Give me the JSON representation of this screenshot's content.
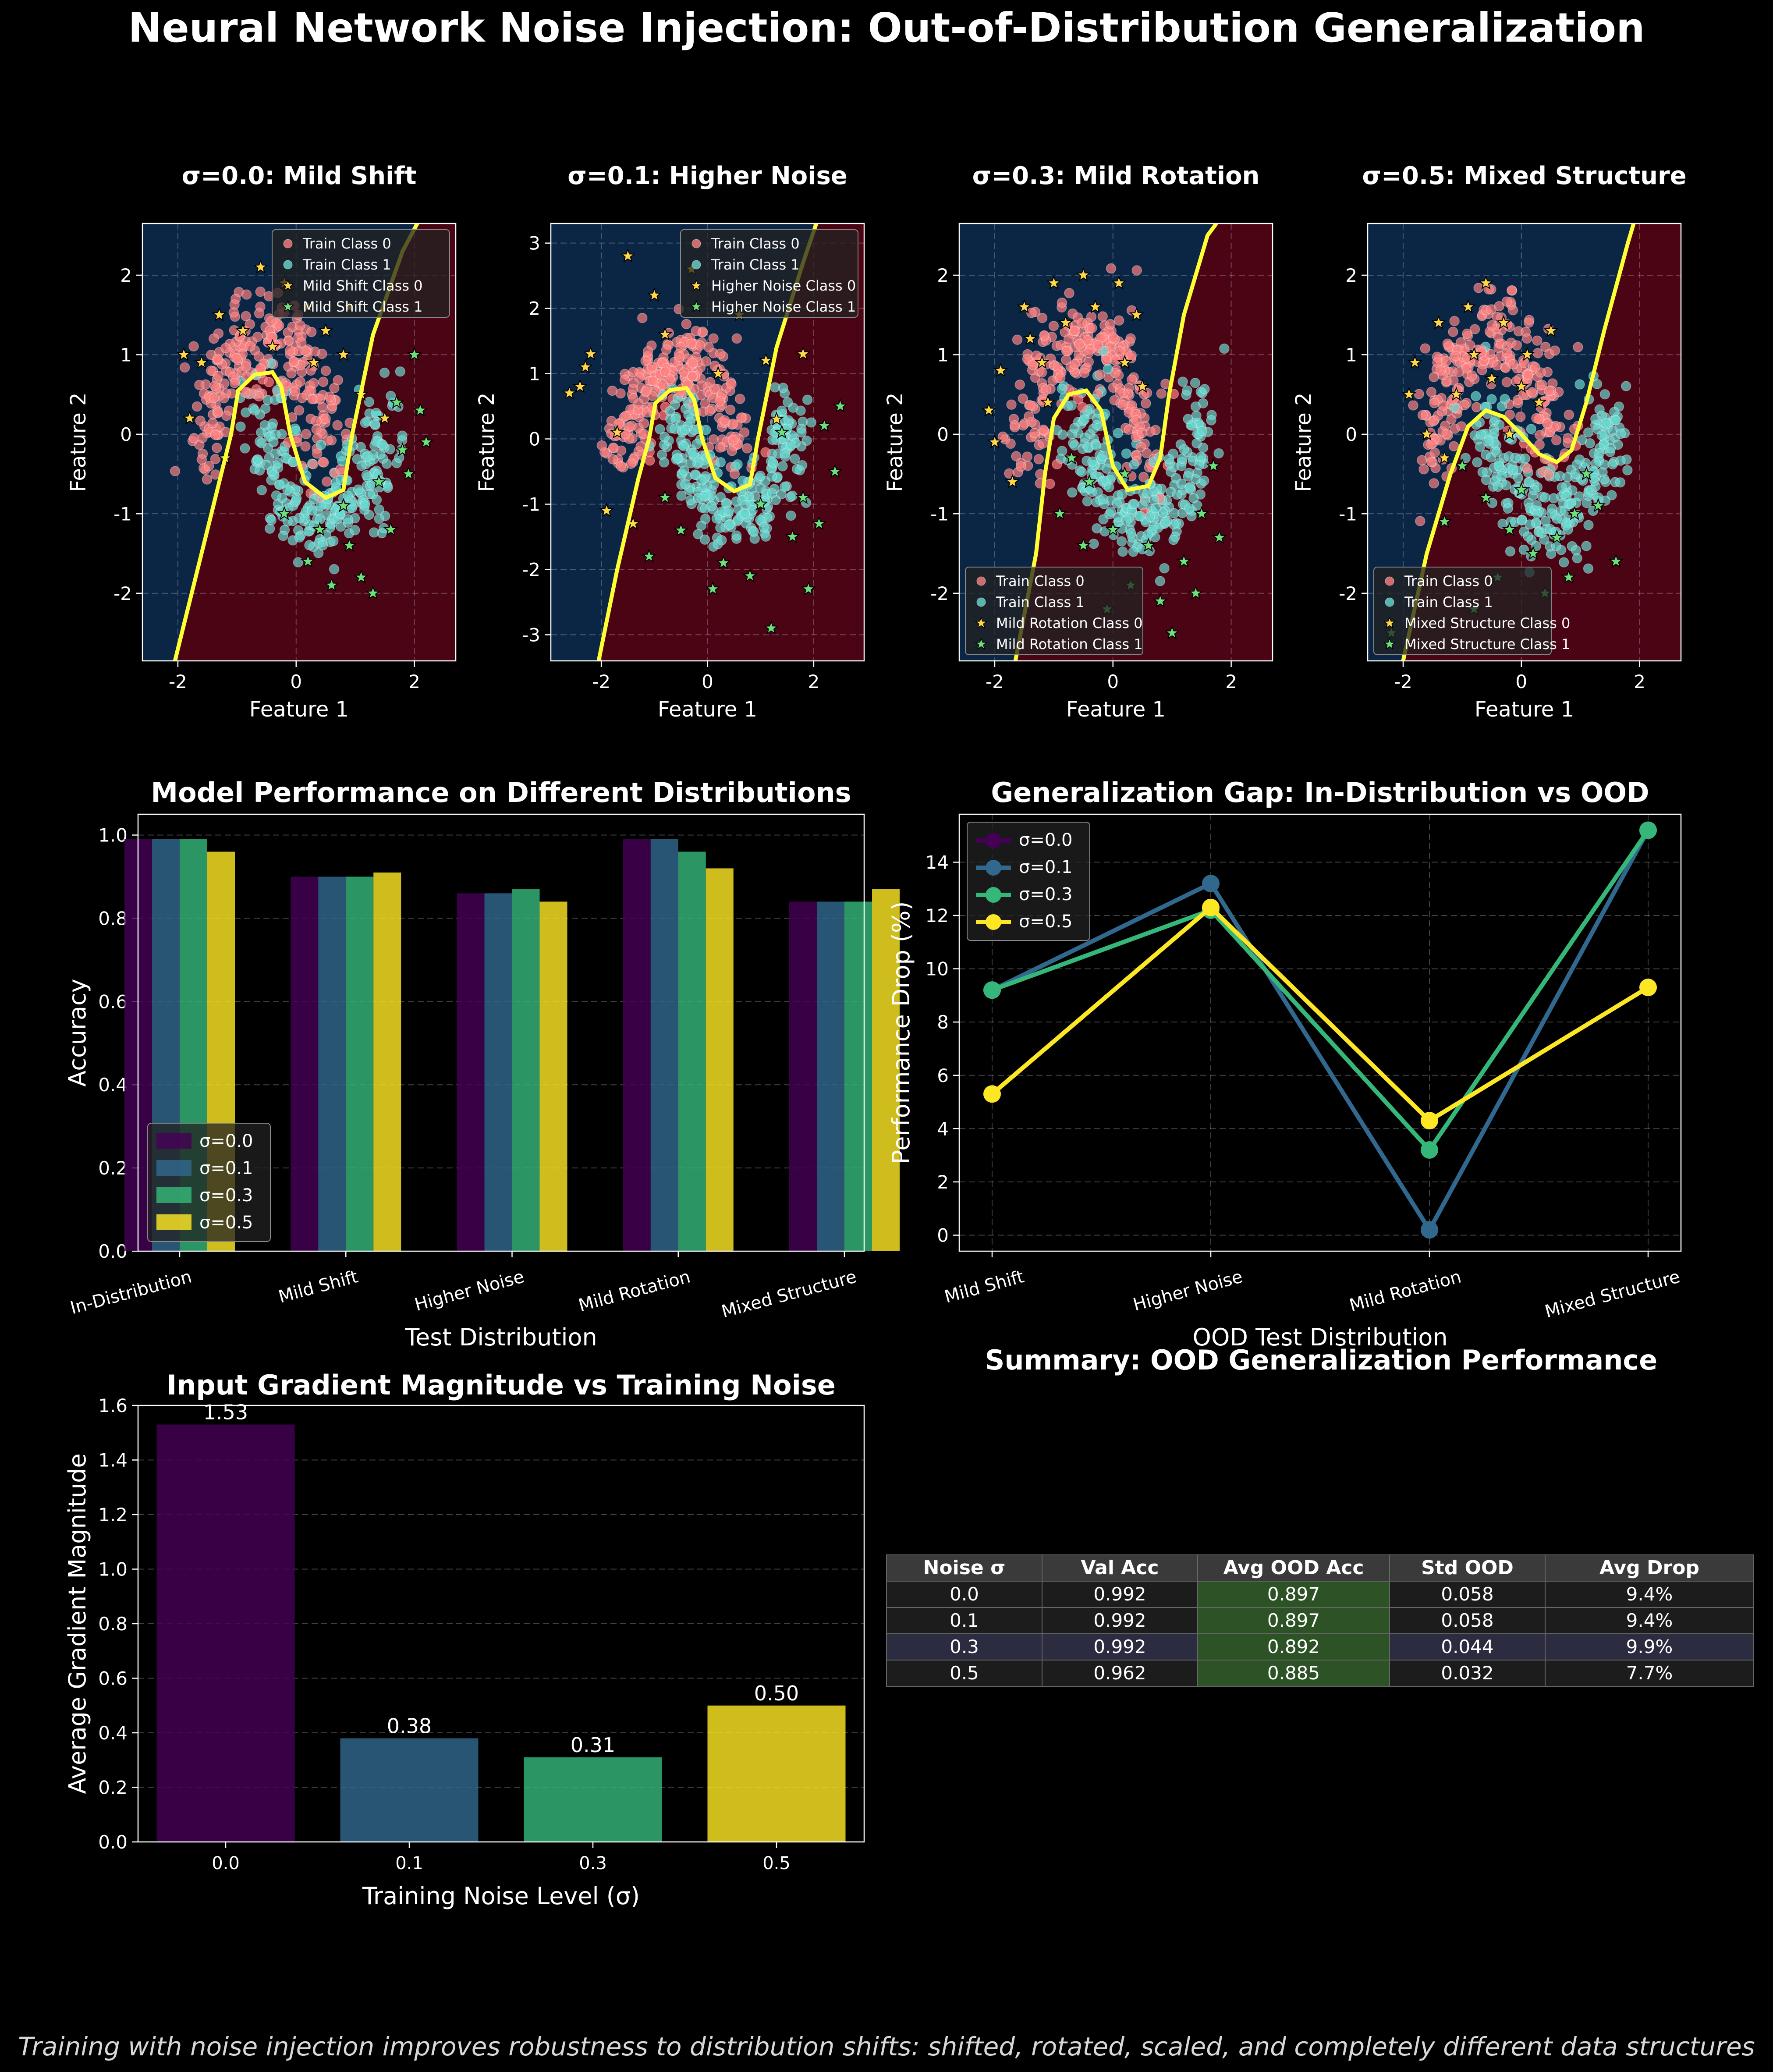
{
  "figure": {
    "title": "Neural Network Noise Injection: Out-of-Distribution Generalization",
    "caption": "Training with noise injection improves robustness to distribution shifts: shifted, rotated, scaled, and completely different data structures"
  },
  "colors": {
    "sigma_0.0": "#440154",
    "sigma_0.1": "#31688e",
    "sigma_0.3": "#35b779",
    "sigma_0.5": "#fde725",
    "train_class_0": "#ff8080",
    "train_class_1": "#66d9d0",
    "ood_class_0": "#ffd84a",
    "ood_class_1": "#6ee07a",
    "region_class_0": "#0b2545",
    "region_class_1": "#4a0414",
    "boundary": "#ffff33"
  },
  "chart_data": [
    {
      "type": "scatter",
      "title": "σ=0.0: Mild Shift",
      "xlabel": "Feature 1",
      "ylabel": "Feature 2",
      "xlim": [
        -2.6,
        2.7
      ],
      "ylim": [
        -2.85,
        2.65
      ],
      "xticks": [
        -2,
        0,
        2
      ],
      "yticks": [
        -2,
        -1,
        0,
        1,
        2
      ],
      "legend_position": "top-right",
      "legend": [
        "Train Class 0",
        "Train Class 1",
        "Mild Shift Class 0",
        "Mild Shift Class 1"
      ],
      "boundary": [
        [
          -2.05,
          -2.85
        ],
        [
          -1.7,
          -1.8
        ],
        [
          -1.3,
          -0.6
        ],
        [
          -1.1,
          0.0
        ],
        [
          -0.98,
          0.55
        ],
        [
          -0.7,
          0.75
        ],
        [
          -0.4,
          0.78
        ],
        [
          -0.25,
          0.6
        ],
        [
          -0.1,
          0.0
        ],
        [
          0.15,
          -0.6
        ],
        [
          0.5,
          -0.8
        ],
        [
          0.8,
          -0.7
        ],
        [
          0.95,
          0.0
        ],
        [
          1.3,
          1.25
        ],
        [
          1.8,
          2.3
        ],
        [
          2.05,
          2.65
        ]
      ],
      "ood_class_0": [
        [
          -1.6,
          0.9
        ],
        [
          -1.3,
          1.5
        ],
        [
          -0.9,
          1.3
        ],
        [
          -0.4,
          1.1
        ],
        [
          0.2,
          1.6
        ],
        [
          0.8,
          1.0
        ],
        [
          1.1,
          0.5
        ],
        [
          -1.8,
          0.2
        ],
        [
          -1.2,
          -0.3
        ],
        [
          0.5,
          1.3
        ],
        [
          -0.6,
          2.1
        ],
        [
          0.9,
          1.6
        ],
        [
          -1.9,
          1.0
        ],
        [
          0.3,
          0.9
        ],
        [
          1.5,
          0.2
        ],
        [
          -0.2,
          1.9
        ]
      ],
      "ood_class_1": [
        [
          0.4,
          -1.2
        ],
        [
          0.9,
          -1.4
        ],
        [
          1.4,
          -0.6
        ],
        [
          1.8,
          -0.2
        ],
        [
          2.1,
          0.3
        ],
        [
          1.1,
          -1.8
        ],
        [
          0.6,
          -1.9
        ],
        [
          1.6,
          -1.2
        ],
        [
          2.0,
          1.0
        ],
        [
          1.9,
          -0.5
        ],
        [
          0.2,
          -1.6
        ],
        [
          1.3,
          -2.0
        ],
        [
          2.2,
          -0.1
        ],
        [
          -0.2,
          -1.0
        ],
        [
          1.7,
          0.4
        ],
        [
          0.8,
          -0.9
        ]
      ]
    },
    {
      "type": "scatter",
      "title": "σ=0.1: Higher Noise",
      "xlabel": "Feature 1",
      "ylabel": "Feature 2",
      "xlim": [
        -2.95,
        2.95
      ],
      "ylim": [
        -3.4,
        3.3
      ],
      "xticks": [
        -2,
        0,
        2
      ],
      "yticks": [
        -3,
        -2,
        -1,
        0,
        1,
        2,
        3
      ],
      "legend_position": "top-right",
      "legend": [
        "Train Class 0",
        "Train Class 1",
        "Higher Noise Class 0",
        "Higher Noise Class 1"
      ],
      "boundary": [
        [
          -2.05,
          -3.4
        ],
        [
          -1.7,
          -2.0
        ],
        [
          -1.3,
          -0.6
        ],
        [
          -1.1,
          0.0
        ],
        [
          -0.98,
          0.55
        ],
        [
          -0.7,
          0.75
        ],
        [
          -0.4,
          0.78
        ],
        [
          -0.25,
          0.6
        ],
        [
          -0.1,
          0.0
        ],
        [
          0.15,
          -0.6
        ],
        [
          0.5,
          -0.8
        ],
        [
          0.8,
          -0.7
        ],
        [
          0.95,
          0.0
        ],
        [
          1.3,
          1.4
        ],
        [
          1.8,
          2.7
        ],
        [
          2.05,
          3.3
        ]
      ],
      "ood_class_0": [
        [
          -2.4,
          0.8
        ],
        [
          -2.2,
          1.3
        ],
        [
          -1.5,
          2.8
        ],
        [
          -0.3,
          2.6
        ],
        [
          1.8,
          1.3
        ],
        [
          -2.6,
          0.7
        ],
        [
          -1.9,
          -1.1
        ],
        [
          -1.4,
          -1.3
        ],
        [
          0.6,
          1.9
        ],
        [
          1.1,
          1.2
        ],
        [
          -0.8,
          1.6
        ],
        [
          -2.3,
          1.1
        ],
        [
          -1.0,
          2.2
        ],
        [
          0.2,
          1.0
        ],
        [
          1.3,
          0.3
        ],
        [
          -1.7,
          0.1
        ]
      ],
      "ood_class_1": [
        [
          0.3,
          -1.9
        ],
        [
          1.2,
          -2.9
        ],
        [
          1.9,
          -2.3
        ],
        [
          2.5,
          0.5
        ],
        [
          2.4,
          -0.5
        ],
        [
          1.6,
          -1.5
        ],
        [
          0.8,
          -2.1
        ],
        [
          -0.8,
          -0.9
        ],
        [
          2.1,
          -1.3
        ],
        [
          1.4,
          0.1
        ],
        [
          -0.5,
          -1.4
        ],
        [
          0.1,
          -2.3
        ],
        [
          2.2,
          0.2
        ],
        [
          1.0,
          -1.0
        ],
        [
          -1.1,
          -1.8
        ],
        [
          1.8,
          -0.9
        ]
      ]
    },
    {
      "type": "scatter",
      "title": "σ=0.3: Mild Rotation",
      "xlabel": "Feature 1",
      "ylabel": "Feature 2",
      "xlim": [
        -2.6,
        2.7
      ],
      "ylim": [
        -2.85,
        2.65
      ],
      "xticks": [
        -2,
        0,
        2
      ],
      "yticks": [
        -2,
        -1,
        0,
        1,
        2
      ],
      "legend_position": "bottom-left",
      "legend": [
        "Train Class 0",
        "Train Class 1",
        "Mild Rotation Class 0",
        "Mild Rotation Class 1"
      ],
      "boundary": [
        [
          -1.65,
          -2.85
        ],
        [
          -1.3,
          -1.5
        ],
        [
          -1.15,
          -0.5
        ],
        [
          -1.0,
          0.2
        ],
        [
          -0.75,
          0.5
        ],
        [
          -0.45,
          0.55
        ],
        [
          -0.2,
          0.3
        ],
        [
          0.0,
          -0.4
        ],
        [
          0.25,
          -0.7
        ],
        [
          0.6,
          -0.65
        ],
        [
          0.8,
          -0.3
        ],
        [
          0.95,
          0.5
        ],
        [
          1.2,
          1.5
        ],
        [
          1.6,
          2.5
        ],
        [
          1.75,
          2.65
        ]
      ],
      "ood_class_0": [
        [
          -1.9,
          0.8
        ],
        [
          -1.5,
          1.6
        ],
        [
          -1.0,
          1.9
        ],
        [
          -0.5,
          2.0
        ],
        [
          0.1,
          1.9
        ],
        [
          0.4,
          1.5
        ],
        [
          -2.1,
          0.3
        ],
        [
          -1.7,
          -0.6
        ],
        [
          -1.2,
          0.9
        ],
        [
          -0.3,
          1.6
        ],
        [
          0.2,
          0.9
        ],
        [
          -1.4,
          1.2
        ],
        [
          -0.8,
          1.4
        ],
        [
          -2.0,
          -0.1
        ],
        [
          0.5,
          0.6
        ],
        [
          -1.1,
          0.4
        ]
      ],
      "ood_class_1": [
        [
          -0.7,
          -0.3
        ],
        [
          -0.4,
          -0.6
        ],
        [
          0.0,
          -1.2
        ],
        [
          0.3,
          -1.9
        ],
        [
          0.8,
          -2.1
        ],
        [
          1.2,
          -1.6
        ],
        [
          1.5,
          -1.0
        ],
        [
          1.7,
          -0.4
        ],
        [
          -0.5,
          -1.4
        ],
        [
          0.6,
          -1.4
        ],
        [
          -0.1,
          -2.2
        ],
        [
          1.0,
          -2.5
        ],
        [
          1.4,
          -2.0
        ],
        [
          -0.9,
          -1.0
        ],
        [
          0.2,
          -0.5
        ],
        [
          1.8,
          -1.3
        ]
      ]
    },
    {
      "type": "scatter",
      "title": "σ=0.5: Mixed Structure",
      "xlabel": "Feature 1",
      "ylabel": "Feature 2",
      "xlim": [
        -2.6,
        2.7
      ],
      "ylim": [
        -2.85,
        2.65
      ],
      "xticks": [
        -2,
        0,
        2
      ],
      "yticks": [
        -2,
        -1,
        0,
        1,
        2
      ],
      "legend_position": "bottom-left",
      "legend": [
        "Train Class 0",
        "Train Class 1",
        "Mixed Structure Class 0",
        "Mixed Structure Class 1"
      ],
      "boundary": [
        [
          -2.0,
          -2.85
        ],
        [
          -1.6,
          -1.5
        ],
        [
          -1.2,
          -0.5
        ],
        [
          -0.9,
          0.1
        ],
        [
          -0.6,
          0.3
        ],
        [
          -0.3,
          0.22
        ],
        [
          0.0,
          0.0
        ],
        [
          0.3,
          -0.25
        ],
        [
          0.6,
          -0.35
        ],
        [
          0.85,
          -0.2
        ],
        [
          1.1,
          0.4
        ],
        [
          1.4,
          1.3
        ],
        [
          1.8,
          2.4
        ],
        [
          1.9,
          2.65
        ]
      ],
      "ood_class_0": [
        [
          -1.8,
          0.9
        ],
        [
          -1.4,
          1.4
        ],
        [
          -0.9,
          1.6
        ],
        [
          -0.3,
          1.4
        ],
        [
          0.1,
          1.0
        ],
        [
          0.3,
          0.4
        ],
        [
          -0.5,
          0.7
        ],
        [
          -1.1,
          0.5
        ],
        [
          -1.6,
          0.0
        ],
        [
          -1.3,
          -0.3
        ],
        [
          -0.2,
          0.0
        ],
        [
          0.5,
          1.3
        ],
        [
          -0.8,
          1.0
        ],
        [
          -1.9,
          0.5
        ],
        [
          0.0,
          0.6
        ],
        [
          -0.6,
          1.9
        ]
      ],
      "ood_class_1": [
        [
          -1.0,
          -0.4
        ],
        [
          -0.6,
          -0.8
        ],
        [
          -0.2,
          -1.2
        ],
        [
          0.2,
          -1.5
        ],
        [
          0.6,
          -1.3
        ],
        [
          0.9,
          -1.0
        ],
        [
          1.1,
          -0.5
        ],
        [
          -0.4,
          -1.8
        ],
        [
          0.4,
          -2.0
        ],
        [
          0.8,
          -1.8
        ],
        [
          -1.3,
          -1.1
        ],
        [
          -0.8,
          -2.2
        ],
        [
          1.3,
          -0.9
        ],
        [
          0.0,
          -0.7
        ],
        [
          1.6,
          -1.6
        ],
        [
          -2.2,
          -2.5
        ]
      ]
    },
    {
      "type": "bar",
      "title": "Model Performance on Different Distributions",
      "xlabel": "Test Distribution",
      "ylabel": "Accuracy",
      "ylim": [
        0,
        1.05
      ],
      "yticks": [
        0.0,
        0.2,
        0.4,
        0.6,
        0.8,
        1.0
      ],
      "legend_position": "bottom-left",
      "categories": [
        "In-Distribution",
        "Mild Shift",
        "Higher Noise",
        "Mild Rotation",
        "Mixed Structure"
      ],
      "series": [
        {
          "name": "σ=0.0",
          "values": [
            0.99,
            0.9,
            0.86,
            0.99,
            0.84
          ]
        },
        {
          "name": "σ=0.1",
          "values": [
            0.99,
            0.9,
            0.86,
            0.99,
            0.84
          ]
        },
        {
          "name": "σ=0.3",
          "values": [
            0.99,
            0.9,
            0.87,
            0.96,
            0.84
          ]
        },
        {
          "name": "σ=0.5",
          "values": [
            0.96,
            0.91,
            0.84,
            0.92,
            0.87
          ]
        }
      ]
    },
    {
      "type": "line",
      "title": "Generalization Gap: In-Distribution vs OOD",
      "xlabel": "OOD Test Distribution",
      "ylabel": "Performance Drop (%)",
      "ylim": [
        -0.6,
        15.8
      ],
      "yticks": [
        0,
        2,
        4,
        6,
        8,
        10,
        12,
        14
      ],
      "legend_position": "top-left",
      "categories": [
        "Mild Shift",
        "Higher Noise",
        "Mild Rotation",
        "Mixed Structure"
      ],
      "series": [
        {
          "name": "σ=0.0",
          "values": [
            9.2,
            13.2,
            0.2,
            15.2
          ]
        },
        {
          "name": "σ=0.1",
          "values": [
            9.2,
            13.2,
            0.2,
            15.2
          ]
        },
        {
          "name": "σ=0.3",
          "values": [
            9.2,
            12.2,
            3.2,
            15.2
          ]
        },
        {
          "name": "σ=0.5",
          "values": [
            5.3,
            12.3,
            4.3,
            9.3
          ]
        }
      ]
    },
    {
      "type": "bar",
      "title": "Input Gradient Magnitude vs Training Noise",
      "xlabel": "Training Noise Level (σ)",
      "ylabel": "Average Gradient Magnitude",
      "ylim": [
        0,
        1.6
      ],
      "yticks": [
        0.0,
        0.2,
        0.4,
        0.6,
        0.8,
        1.0,
        1.2,
        1.4,
        1.6
      ],
      "categories": [
        "0.0",
        "0.1",
        "0.3",
        "0.5"
      ],
      "values": [
        1.53,
        0.38,
        0.31,
        0.5
      ],
      "value_labels": [
        "1.53",
        "0.38",
        "0.31",
        "0.50"
      ]
    },
    {
      "type": "table",
      "title": "Summary: OOD Generalization Performance",
      "columns": [
        "Noise σ",
        "Val Acc",
        "Avg OOD Acc",
        "Std OOD",
        "Avg Drop"
      ],
      "rows": [
        [
          "0.0",
          "0.992",
          "0.897",
          "0.058",
          "9.4%"
        ],
        [
          "0.1",
          "0.992",
          "0.897",
          "0.058",
          "9.4%"
        ],
        [
          "0.3",
          "0.992",
          "0.892",
          "0.044",
          "9.9%"
        ],
        [
          "0.5",
          "0.962",
          "0.885",
          "0.032",
          "7.7%"
        ]
      ],
      "highlight_row": 2,
      "highlight_column": 2
    }
  ]
}
